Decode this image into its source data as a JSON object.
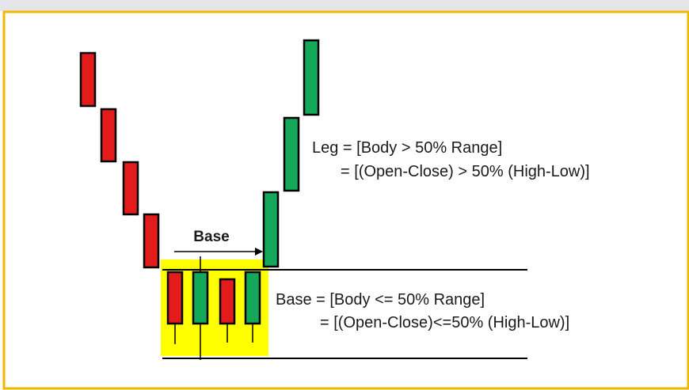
{
  "colors": {
    "frame": "#f2b800",
    "bearish": "#e31b1b",
    "bullish": "#14a85a",
    "base_highlight": "#ffff00",
    "line": "#000000",
    "text": "#1a1a1a"
  },
  "labels": {
    "base_arrow": "Base",
    "leg_line1": "Leg = [Body > 50% Range]",
    "leg_line2": "= [(Open-Close) > 50% (High-Low)]",
    "base_line1": "Base = [Body <= 50% Range]",
    "base_line2": "= [(Open-Close)<=50% (High-Low)]"
  },
  "candles": [
    {
      "role": "leg-in",
      "direction": "bearish"
    },
    {
      "role": "leg-in",
      "direction": "bearish"
    },
    {
      "role": "leg-in",
      "direction": "bearish"
    },
    {
      "role": "leg-in",
      "direction": "bearish"
    },
    {
      "role": "base",
      "direction": "bearish"
    },
    {
      "role": "base",
      "direction": "bullish"
    },
    {
      "role": "base",
      "direction": "bearish"
    },
    {
      "role": "base",
      "direction": "bullish"
    },
    {
      "role": "leg-out",
      "direction": "bullish"
    },
    {
      "role": "leg-out",
      "direction": "bullish"
    },
    {
      "role": "leg-out",
      "direction": "bullish"
    }
  ]
}
